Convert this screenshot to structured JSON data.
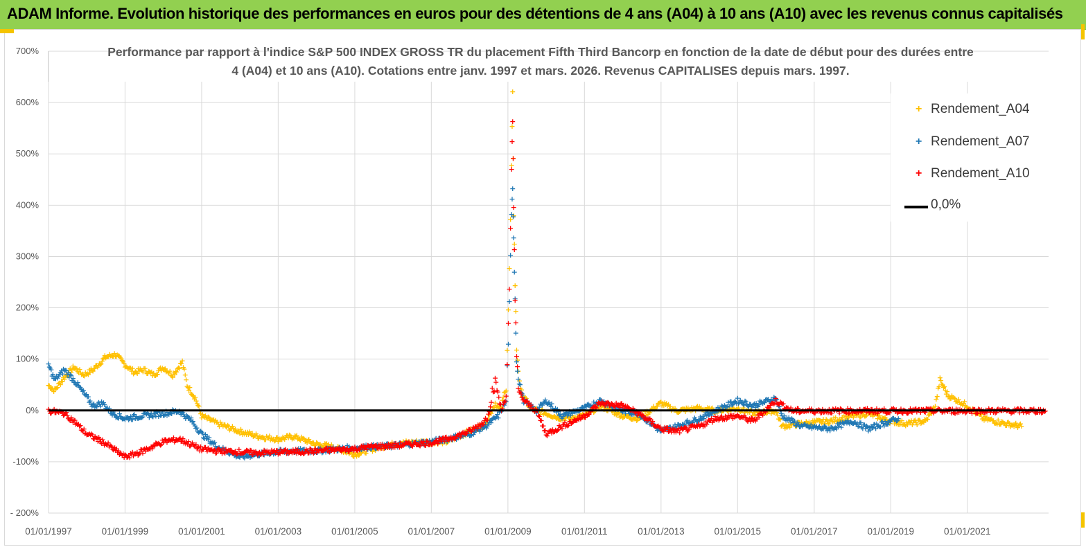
{
  "banner": {
    "title": "ADAM Informe. Evolution historique des performances en euros pour des détentions de 4 ans (A04) à 10 ans (A10) avec les revenus connus capitalisés",
    "color": "#92d050"
  },
  "chart_data": {
    "type": "scatter",
    "title": "Performance par rapport à l'indice S&P 500 INDEX GROSS TR  du placement Fifth Third Bancorp en fonction de la date de début pour des durées entre 4 (A04) et 10 ans (A10). Cotations entre janv. 1997 et mars. 2026. Revenus CAPITALISES depuis mars. 1997.",
    "xlabel": "",
    "ylabel": "",
    "xlim": [
      "1997-01-01",
      "2023-02-15"
    ],
    "ylim": [
      -200,
      700
    ],
    "y_unit": "%",
    "yticks": [
      "- 200%",
      "-100%",
      "0%",
      "100%",
      "200%",
      "300%",
      "400%",
      "500%",
      "600%",
      "700%"
    ],
    "xticks": [
      "01/01/1997",
      "01/01/1999",
      "01/01/2001",
      "01/01/2003",
      "01/01/2005",
      "01/01/2007",
      "01/01/2009",
      "01/01/2011",
      "01/01/2013",
      "01/01/2015",
      "01/01/2017",
      "01/01/2019",
      "01/01/2021"
    ],
    "grid": "horizontal",
    "legend_position": "top-right",
    "series": [
      {
        "name": "Rendement_A04",
        "color": "#ffc000",
        "marker": "plus",
        "points": [
          [
            "1997-01-01",
            50
          ],
          [
            "1997-03-01",
            40
          ],
          [
            "1997-06-01",
            65
          ],
          [
            "1997-09-01",
            85
          ],
          [
            "1997-12-01",
            70
          ],
          [
            "1998-03-01",
            80
          ],
          [
            "1998-07-01",
            105
          ],
          [
            "1998-10-01",
            110
          ],
          [
            "1999-01-01",
            90
          ],
          [
            "1999-04-01",
            75
          ],
          [
            "1999-07-01",
            80
          ],
          [
            "1999-10-01",
            70
          ],
          [
            "2000-01-01",
            85
          ],
          [
            "2000-04-01",
            70
          ],
          [
            "2000-07-01",
            95
          ],
          [
            "2000-08-15",
            50
          ],
          [
            "2000-11-01",
            25
          ],
          [
            "2001-01-01",
            -10
          ],
          [
            "2001-06-01",
            -25
          ],
          [
            "2002-01-01",
            -40
          ],
          [
            "2002-07-01",
            -50
          ],
          [
            "2003-01-01",
            -55
          ],
          [
            "2003-06-01",
            -50
          ],
          [
            "2004-01-01",
            -65
          ],
          [
            "2004-06-01",
            -70
          ],
          [
            "2005-01-01",
            -85
          ],
          [
            "2005-06-01",
            -75
          ],
          [
            "2006-01-01",
            -65
          ],
          [
            "2006-06-01",
            -62
          ],
          [
            "2007-01-01",
            -60
          ],
          [
            "2007-06-01",
            -60
          ],
          [
            "2008-01-01",
            -40
          ],
          [
            "2008-06-01",
            -25
          ],
          [
            "2008-09-01",
            15
          ],
          [
            "2008-10-20",
            0
          ],
          [
            "2008-12-15",
            50
          ],
          [
            "2009-01-15",
            270
          ],
          [
            "2009-02-05",
            470
          ],
          [
            "2009-02-15",
            610
          ],
          [
            "2009-02-25",
            390
          ],
          [
            "2009-03-10",
            250
          ],
          [
            "2009-03-25",
            120
          ],
          [
            "2009-04-10",
            80
          ],
          [
            "2009-05-01",
            40
          ],
          [
            "2009-08-01",
            5
          ],
          [
            "2010-01-01",
            -5
          ],
          [
            "2010-06-01",
            -15
          ],
          [
            "2011-01-01",
            -10
          ],
          [
            "2011-06-01",
            10
          ],
          [
            "2012-01-01",
            -10
          ],
          [
            "2012-06-01",
            -15
          ],
          [
            "2013-01-01",
            15
          ],
          [
            "2013-06-01",
            0
          ],
          [
            "2014-01-01",
            5
          ],
          [
            "2014-06-01",
            0
          ],
          [
            "2015-01-01",
            5
          ],
          [
            "2015-06-01",
            -5
          ],
          [
            "2016-01-01",
            0
          ],
          [
            "2016-03-01",
            -30
          ],
          [
            "2016-09-01",
            -25
          ],
          [
            "2017-06-01",
            -20
          ],
          [
            "2018-01-01",
            -10
          ],
          [
            "2018-06-01",
            -5
          ],
          [
            "2019-01-01",
            -20
          ],
          [
            "2019-06-01",
            -25
          ],
          [
            "2019-12-01",
            -20
          ],
          [
            "2020-03-01",
            10
          ],
          [
            "2020-04-15",
            60
          ],
          [
            "2020-07-01",
            30
          ],
          [
            "2021-01-01",
            10
          ],
          [
            "2021-06-01",
            -15
          ],
          [
            "2022-01-01",
            -25
          ],
          [
            "2022-06-01",
            -30
          ]
        ]
      },
      {
        "name": "Rendement_A07",
        "color": "#1f77b4",
        "marker": "plus",
        "points": [
          [
            "1997-01-01",
            90
          ],
          [
            "1997-03-01",
            60
          ],
          [
            "1997-06-01",
            80
          ],
          [
            "1997-09-01",
            60
          ],
          [
            "1997-12-01",
            35
          ],
          [
            "1998-03-01",
            10
          ],
          [
            "1998-06-01",
            15
          ],
          [
            "1998-09-01",
            -5
          ],
          [
            "1999-01-01",
            -15
          ],
          [
            "1999-06-01",
            -10
          ],
          [
            "2000-01-01",
            -5
          ],
          [
            "2000-06-01",
            0
          ],
          [
            "2000-10-01",
            -20
          ],
          [
            "2001-01-01",
            -45
          ],
          [
            "2001-06-01",
            -70
          ],
          [
            "2002-01-01",
            -90
          ],
          [
            "2002-06-01",
            -85
          ],
          [
            "2003-01-01",
            -80
          ],
          [
            "2003-06-01",
            -78
          ],
          [
            "2004-01-01",
            -78
          ],
          [
            "2004-06-01",
            -75
          ],
          [
            "2005-01-01",
            -72
          ],
          [
            "2005-06-01",
            -70
          ],
          [
            "2006-01-01",
            -68
          ],
          [
            "2006-06-01",
            -65
          ],
          [
            "2007-01-01",
            -60
          ],
          [
            "2007-06-01",
            -55
          ],
          [
            "2008-01-01",
            -45
          ],
          [
            "2008-06-01",
            -30
          ],
          [
            "2008-10-01",
            -10
          ],
          [
            "2008-12-15",
            20
          ],
          [
            "2009-01-15",
            200
          ],
          [
            "2009-02-05",
            380
          ],
          [
            "2009-02-15",
            440
          ],
          [
            "2009-02-25",
            340
          ],
          [
            "2009-03-10",
            220
          ],
          [
            "2009-03-25",
            100
          ],
          [
            "2009-04-10",
            60
          ],
          [
            "2009-06-01",
            20
          ],
          [
            "2009-10-01",
            0
          ],
          [
            "2010-01-01",
            20
          ],
          [
            "2010-06-01",
            -10
          ],
          [
            "2011-01-01",
            5
          ],
          [
            "2011-06-01",
            20
          ],
          [
            "2012-01-01",
            0
          ],
          [
            "2012-06-01",
            -5
          ],
          [
            "2013-01-01",
            -40
          ],
          [
            "2013-06-01",
            -30
          ],
          [
            "2014-01-01",
            -15
          ],
          [
            "2014-06-01",
            0
          ],
          [
            "2015-01-01",
            20
          ],
          [
            "2015-06-01",
            10
          ],
          [
            "2016-01-01",
            25
          ],
          [
            "2016-03-01",
            -10
          ],
          [
            "2016-09-01",
            -30
          ],
          [
            "2017-06-01",
            -35
          ],
          [
            "2018-01-01",
            -20
          ],
          [
            "2018-06-01",
            -35
          ],
          [
            "2019-01-01",
            -20
          ],
          [
            "2019-03-15",
            -15
          ]
        ]
      },
      {
        "name": "Rendement_A10",
        "color": "#ff0000",
        "marker": "plus",
        "points": [
          [
            "1997-01-01",
            0
          ],
          [
            "1997-06-01",
            -5
          ],
          [
            "1997-09-01",
            -20
          ],
          [
            "1998-01-01",
            -45
          ],
          [
            "1998-06-01",
            -60
          ],
          [
            "1999-01-01",
            -90
          ],
          [
            "1999-06-01",
            -80
          ],
          [
            "2000-01-01",
            -60
          ],
          [
            "2000-06-01",
            -55
          ],
          [
            "2001-01-01",
            -75
          ],
          [
            "2001-06-01",
            -78
          ],
          [
            "2002-01-01",
            -80
          ],
          [
            "2002-06-01",
            -82
          ],
          [
            "2003-01-01",
            -80
          ],
          [
            "2003-06-01",
            -80
          ],
          [
            "2004-01-01",
            -78
          ],
          [
            "2004-06-01",
            -76
          ],
          [
            "2005-01-01",
            -74
          ],
          [
            "2005-06-01",
            -70
          ],
          [
            "2006-01-01",
            -68
          ],
          [
            "2006-06-01",
            -65
          ],
          [
            "2007-01-01",
            -62
          ],
          [
            "2007-06-01",
            -55
          ],
          [
            "2008-01-01",
            -40
          ],
          [
            "2008-06-01",
            -20
          ],
          [
            "2008-09-01",
            60
          ],
          [
            "2008-11-01",
            0
          ],
          [
            "2008-12-15",
            30
          ],
          [
            "2009-01-15",
            230
          ],
          [
            "2009-02-05",
            460
          ],
          [
            "2009-02-15",
            565
          ],
          [
            "2009-02-25",
            400
          ],
          [
            "2009-03-10",
            230
          ],
          [
            "2009-03-25",
            110
          ],
          [
            "2009-04-10",
            40
          ],
          [
            "2009-06-01",
            20
          ],
          [
            "2009-10-01",
            0
          ],
          [
            "2010-01-01",
            -45
          ],
          [
            "2010-06-01",
            -30
          ],
          [
            "2011-01-01",
            -10
          ],
          [
            "2011-06-01",
            15
          ],
          [
            "2012-01-01",
            10
          ],
          [
            "2012-06-01",
            -5
          ],
          [
            "2013-01-01",
            -35
          ],
          [
            "2013-06-01",
            -40
          ],
          [
            "2014-01-01",
            -30
          ],
          [
            "2014-06-01",
            -15
          ],
          [
            "2015-01-01",
            -10
          ],
          [
            "2015-06-01",
            -20
          ],
          [
            "2016-01-01",
            20
          ],
          [
            "2016-06-01",
            0
          ],
          [
            "2017-06-01",
            0
          ],
          [
            "2018-06-01",
            0
          ],
          [
            "2019-06-01",
            0
          ],
          [
            "2020-06-01",
            0
          ],
          [
            "2021-06-01",
            0
          ],
          [
            "2022-06-01",
            0
          ],
          [
            "2023-01-15",
            0
          ]
        ]
      },
      {
        "name": "0,0%",
        "color": "#000000",
        "marker": "line",
        "points": [
          [
            "1997-01-01",
            0
          ],
          [
            "2023-01-15",
            0
          ]
        ]
      }
    ]
  }
}
